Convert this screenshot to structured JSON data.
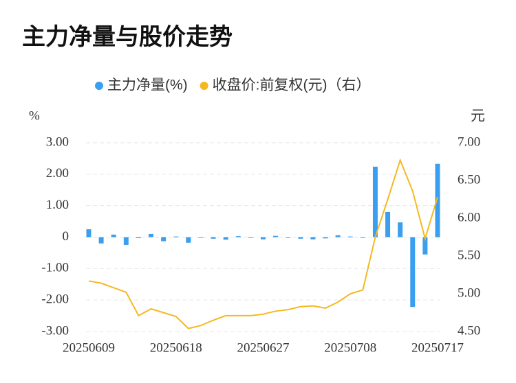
{
  "chart_data": {
    "type": "bar_line",
    "title": "主力净量与股价走势",
    "y_label": "%",
    "y2_label": "元",
    "categories": [
      "20250609",
      null,
      null,
      null,
      null,
      null,
      null,
      "20250618",
      null,
      null,
      null,
      null,
      null,
      null,
      "20250627",
      null,
      null,
      null,
      null,
      null,
      null,
      "20250708",
      null,
      null,
      null,
      null,
      null,
      null,
      "20250717"
    ],
    "series": [
      {
        "name": "主力净量(%)",
        "color": "#3a9ff0",
        "kind": "bar",
        "axis": "y",
        "values": [
          0.25,
          -0.2,
          0.08,
          -0.25,
          -0.03,
          0.1,
          -0.13,
          0.02,
          -0.18,
          -0.02,
          -0.05,
          -0.08,
          0.03,
          -0.02,
          -0.07,
          0.04,
          -0.02,
          -0.05,
          -0.07,
          -0.04,
          0.06,
          0.02,
          -0.01,
          2.24,
          0.8,
          0.47,
          -2.22,
          -0.55,
          2.33
        ]
      },
      {
        "name": "收盘价:前复权(元)（右）",
        "color": "#f5b820",
        "kind": "line",
        "axis": "y2",
        "values": [
          5.17,
          5.14,
          5.08,
          5.02,
          4.71,
          4.8,
          4.75,
          4.7,
          4.54,
          4.58,
          4.65,
          4.71,
          4.71,
          4.71,
          4.73,
          4.77,
          4.79,
          4.83,
          4.84,
          4.81,
          4.89,
          5.0,
          5.05,
          5.75,
          6.25,
          6.77,
          6.36,
          5.73,
          6.28
        ]
      }
    ],
    "ylim": [
      -3,
      3
    ],
    "yticks": [
      {
        "value": 3,
        "label": "3.00"
      },
      {
        "value": 2,
        "label": "2.00"
      },
      {
        "value": 1,
        "label": "1.00"
      },
      0,
      {
        "value": -1,
        "label": "-1.00"
      },
      {
        "value": -2,
        "label": "-2.00"
      },
      {
        "value": -3,
        "label": "-3.00"
      }
    ],
    "y2lim": [
      4.5,
      7
    ],
    "y2ticks": [
      {
        "value": 7,
        "label": "7.00"
      },
      {
        "value": 6.5,
        "label": "6.50"
      },
      {
        "value": 6,
        "label": "6.00"
      },
      {
        "value": 5.5,
        "label": "5.50"
      },
      {
        "value": 5,
        "label": "5.00"
      },
      {
        "value": 4.5,
        "label": "4.50"
      }
    ],
    "grid": true
  }
}
